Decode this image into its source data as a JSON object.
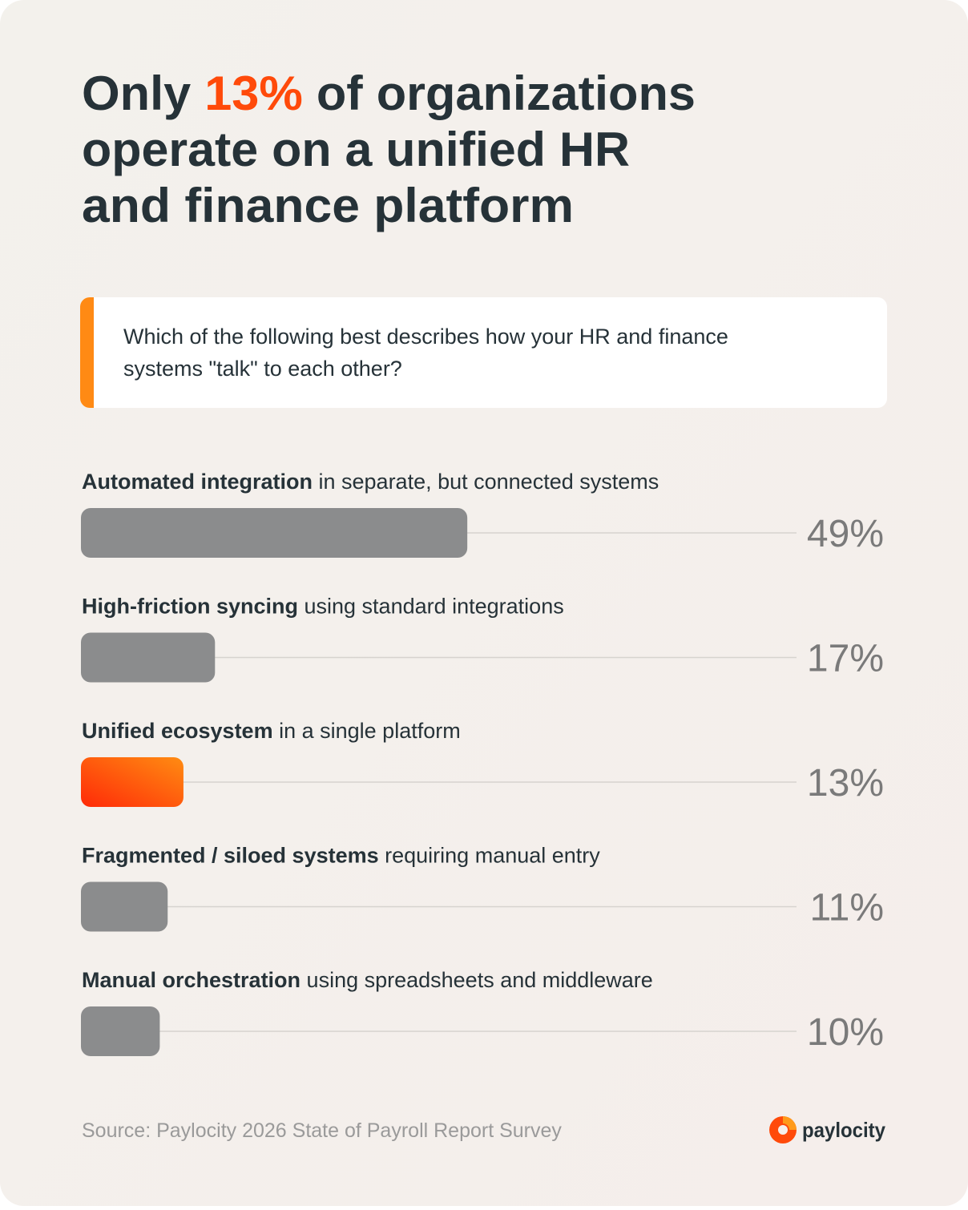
{
  "chart_data": {
    "type": "bar",
    "title_lines": [
      [
        "Only ",
        "13%",
        " of organizations"
      ],
      [
        "operate on a unified HR"
      ],
      [
        "and finance platform"
      ]
    ],
    "question": [
      "Which of the following best describes how your HR and finance",
      "systems \"talk\" to each other?"
    ],
    "categories": [
      {
        "bold": "Automated integration",
        "text": " in separate, but connected systems"
      },
      {
        "bold": "High-friction syncing",
        "text": " using standard integrations"
      },
      {
        "bold": "Unified ecosystem",
        "text": " in a single platform"
      },
      {
        "bold": "Fragmented / siloed systems",
        "text": " requiring manual entry"
      },
      {
        "bold": "Manual orchestration",
        "text": " using spreadsheets and middleware"
      }
    ],
    "values": [
      49,
      17,
      13,
      11,
      10
    ],
    "value_labels": [
      "49%",
      "17%",
      "13%",
      "11%",
      "10%"
    ],
    "colors": [
      "#8b8c8d",
      "#8b8c8d",
      "#ff3d0a",
      "#8b8c8d",
      "#8b8c8d"
    ],
    "xlim": [
      0,
      100
    ],
    "source": "Source: Paylocity 2026 State of Payroll Report Survey",
    "brand": "paylocity"
  }
}
